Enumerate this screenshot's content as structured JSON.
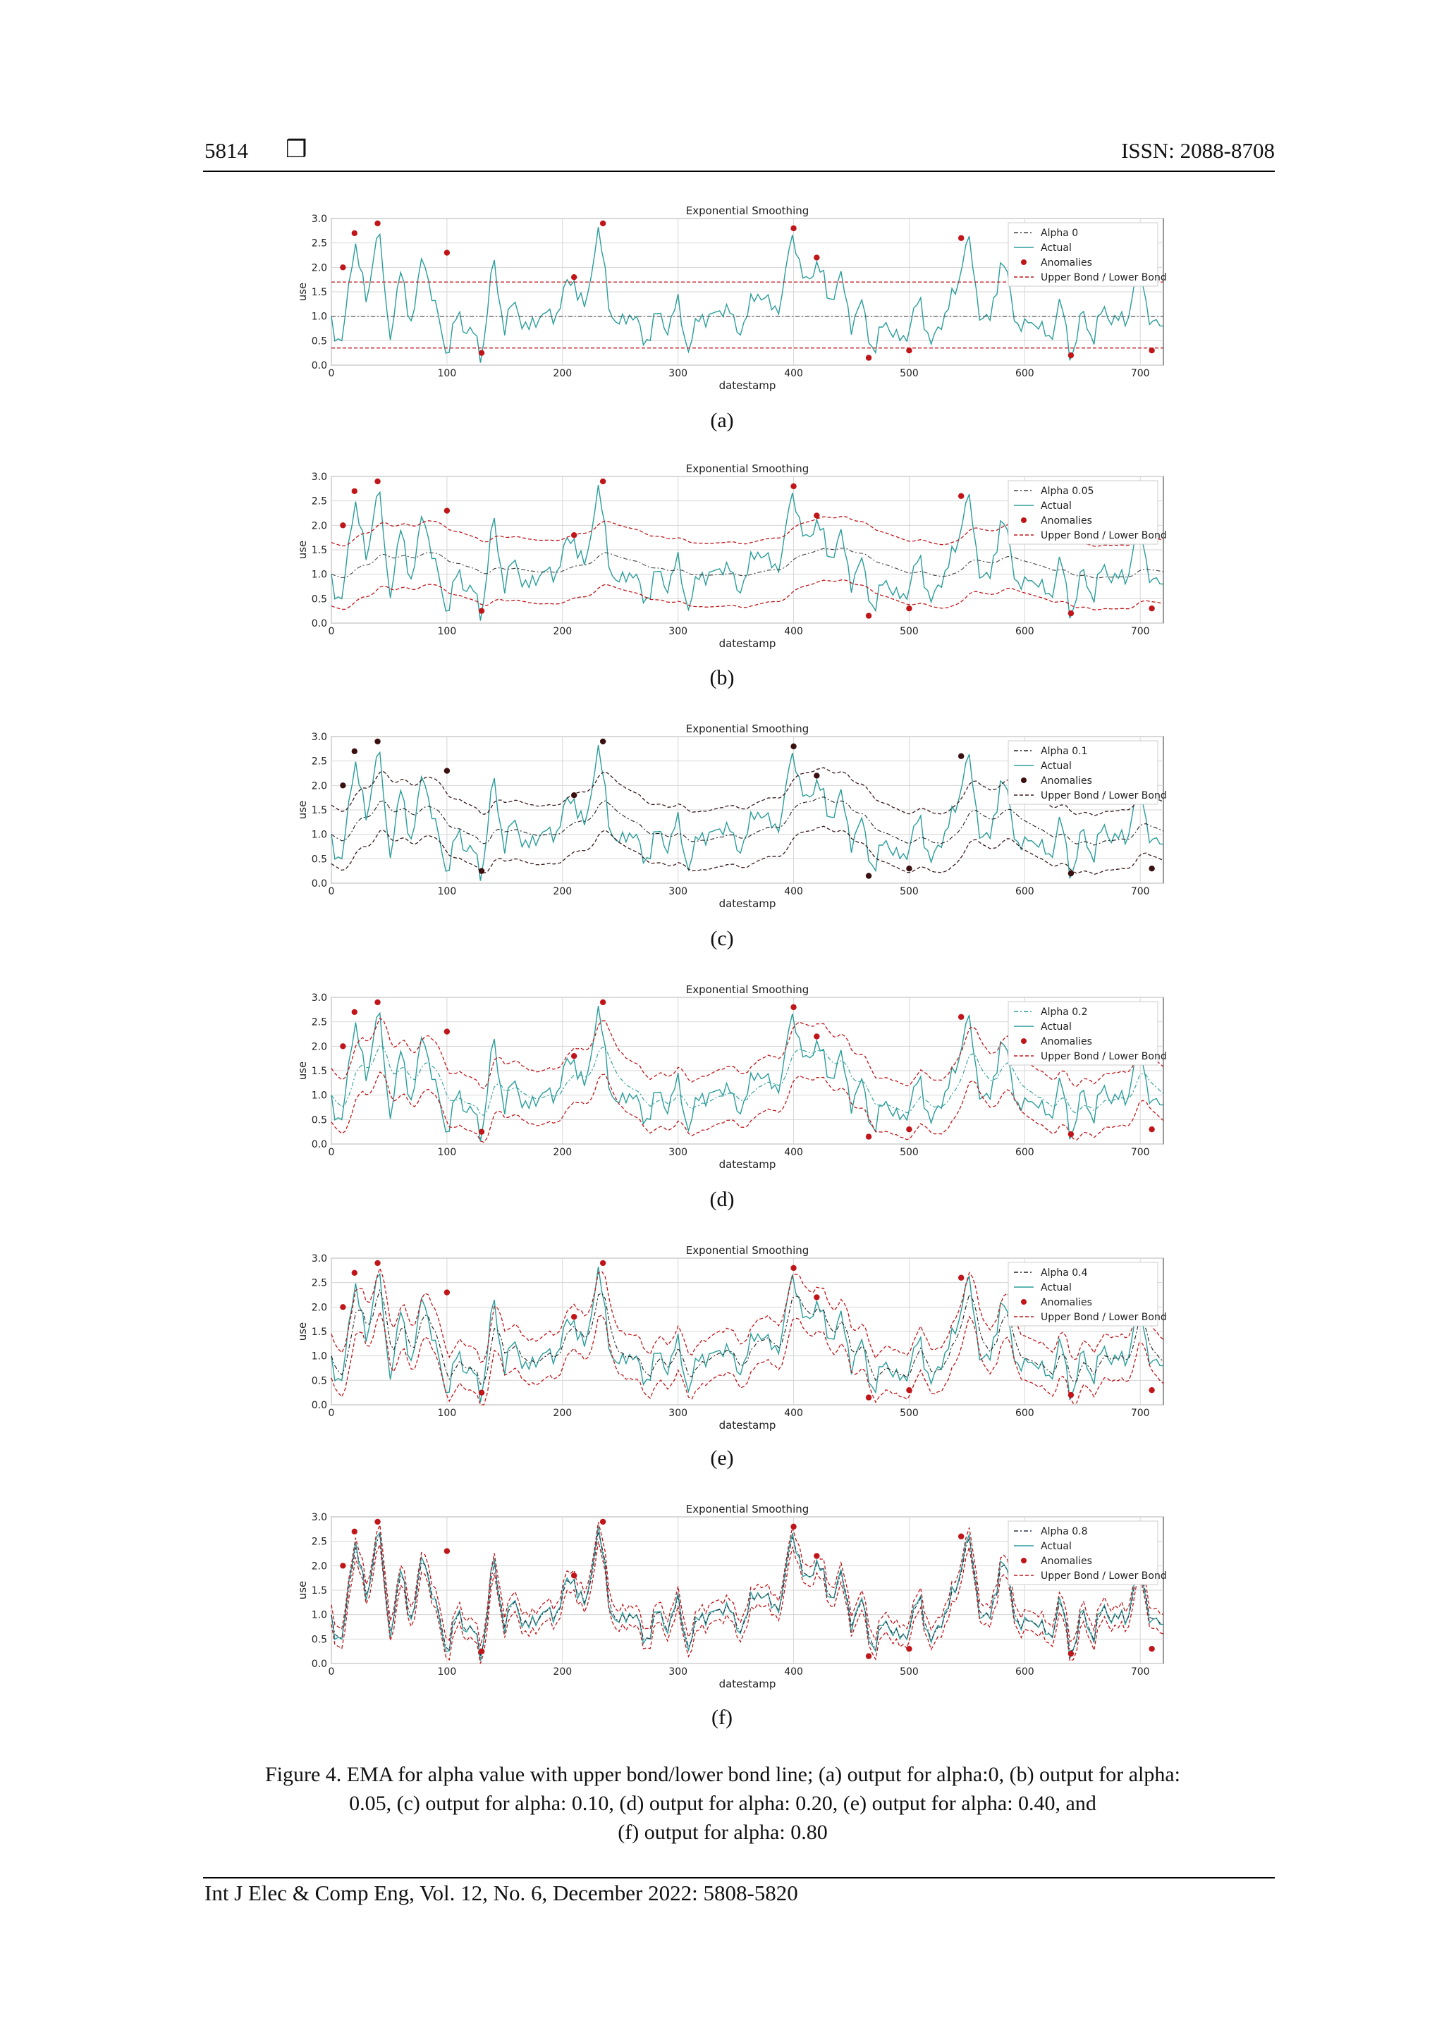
{
  "header": {
    "page_number": "5814",
    "box_glyph": "❒",
    "issn": "ISSN: 2088-8708"
  },
  "footer": {
    "citation": "Int J Elec & Comp Eng, Vol. 12, No. 6, December 2022: 5808-5820"
  },
  "caption": {
    "line1": "Figure 4. EMA for alpha value with upper bond/lower bond line; (a) output for alpha:0, (b) output for alpha:",
    "line2": "0.05, (c) output for alpha: 0.10, (d) output for alpha: 0.20, (e) output for alpha: 0.40, and",
    "line3": "(f) output for alpha: 0.80"
  },
  "colors": {
    "actual": "#2a9d9a",
    "anomaly": "#c0161a",
    "band_red": "#c0161a",
    "band_dark": "#3a1a1a",
    "alpha_line": "#444444",
    "grid": "#d6d6d6"
  },
  "chart_data": [
    {
      "type": "line",
      "panel_label": "(a)",
      "title": "Exponential Smoothing",
      "xlabel": "datestamp",
      "ylabel": "use",
      "xlim": [
        0,
        720
      ],
      "ylim": [
        0,
        3.0
      ],
      "xticks": [
        "0",
        "100",
        "200",
        "300",
        "400",
        "500",
        "600",
        "700"
      ],
      "yticks": [
        "0.0",
        "0.5",
        "1.0",
        "1.5",
        "2.0",
        "2.5",
        "3.0"
      ],
      "grid": true,
      "legend_placement": "top-right",
      "legend": [
        "Alpha 0",
        "Actual",
        "Anomalies",
        "Upper Bond / Lower Bond"
      ],
      "alpha": 0,
      "band_style": "red-dashed-flat",
      "alpha_line_color": "#444444",
      "series": [
        {
          "name": "Actual",
          "x": [
            0,
            10,
            20,
            30,
            40,
            50,
            60,
            70,
            80,
            90,
            100,
            110,
            120,
            130,
            140,
            150,
            160,
            170,
            180,
            190,
            200,
            210,
            220,
            230,
            240,
            250,
            260,
            270,
            280,
            290,
            300,
            310,
            320,
            330,
            340,
            350,
            360,
            370,
            380,
            390,
            400,
            410,
            420,
            430,
            440,
            450,
            460,
            470,
            480,
            490,
            500,
            510,
            520,
            530,
            540,
            550,
            560,
            570,
            580,
            590,
            600,
            610,
            620,
            630,
            640,
            650,
            660,
            670,
            680,
            690,
            700,
            710,
            720
          ],
          "y": [
            0.9,
            0.4,
            2.7,
            1.2,
            2.9,
            0.6,
            1.8,
            0.9,
            2.3,
            1.1,
            0.3,
            1.0,
            0.7,
            0.2,
            2.1,
            0.8,
            1.3,
            0.6,
            1.1,
            0.9,
            1.4,
            1.8,
            1.0,
            2.9,
            1.3,
            0.7,
            1.2,
            0.4,
            1.0,
            0.8,
            1.2,
            0.3,
            1.1,
            0.9,
            1.3,
            0.7,
            1.0,
            1.6,
            1.1,
            1.4,
            2.8,
            1.5,
            2.2,
            1.3,
            1.8,
            0.9,
            1.2,
            0.2,
            1.0,
            0.4,
            0.8,
            1.3,
            0.3,
            1.1,
            1.4,
            2.7,
            1.2,
            0.8,
            2.3,
            1.1,
            0.7,
            1.0,
            0.4,
            1.3,
            0.2,
            1.0,
            0.6,
            1.2,
            0.8,
            1.1,
            2.1,
            0.7,
            0.9
          ]
        },
        {
          "name": "Upper Bond / Lower Bond",
          "upper_flat": 1.7,
          "lower_flat": 0.35
        }
      ],
      "anomalies": {
        "x": [
          10,
          20,
          40,
          100,
          130,
          210,
          235,
          400,
          420,
          465,
          500,
          545,
          640,
          710
        ],
        "y": [
          2.0,
          2.7,
          2.9,
          2.3,
          0.25,
          1.8,
          2.9,
          2.8,
          2.2,
          0.15,
          0.3,
          2.6,
          0.2,
          0.3
        ]
      }
    },
    {
      "type": "line",
      "panel_label": "(b)",
      "title": "Exponential Smoothing",
      "xlabel": "datestamp",
      "ylabel": "use",
      "xlim": [
        0,
        720
      ],
      "ylim": [
        0,
        3.0
      ],
      "xticks": [
        "0",
        "100",
        "200",
        "300",
        "400",
        "500",
        "600",
        "700"
      ],
      "yticks": [
        "0.0",
        "0.5",
        "1.0",
        "1.5",
        "2.0",
        "2.5",
        "3.0"
      ],
      "grid": true,
      "legend_placement": "top-right",
      "legend": [
        "Alpha 0.05",
        "Actual",
        "Anomalies",
        "Upper Bond / Lower Bond"
      ],
      "alpha": 0.05,
      "band_style": "red-dashed",
      "band_width": 0.65,
      "alpha_line_color": "#444444",
      "series": [
        {
          "name": "Actual",
          "ref": 0
        }
      ],
      "anomalies": {
        "x": [
          10,
          20,
          40,
          100,
          130,
          210,
          235,
          400,
          420,
          465,
          500,
          545,
          640,
          710
        ],
        "y": [
          2.0,
          2.7,
          2.9,
          2.3,
          0.25,
          1.8,
          2.9,
          2.8,
          2.2,
          0.15,
          0.3,
          2.6,
          0.2,
          0.3
        ]
      }
    },
    {
      "type": "line",
      "panel_label": "(c)",
      "title": "Exponential Smoothing",
      "xlabel": "datestamp",
      "ylabel": "use",
      "xlim": [
        0,
        720
      ],
      "ylim": [
        0,
        3.0
      ],
      "xticks": [
        "0",
        "100",
        "200",
        "300",
        "400",
        "500",
        "600",
        "700"
      ],
      "yticks": [
        "0.0",
        "0.5",
        "1.0",
        "1.5",
        "2.0",
        "2.5",
        "3.0"
      ],
      "grid": true,
      "legend_placement": "top-right",
      "legend": [
        "Alpha 0.1",
        "Actual",
        "Anomalies",
        "Upper Bond / Lower Bond"
      ],
      "alpha": 0.1,
      "band_style": "dark-dashed",
      "band_width": 0.6,
      "alpha_line_color": "#222222",
      "series": [
        {
          "name": "Actual",
          "ref": 0
        }
      ],
      "anomalies": {
        "x": [
          10,
          20,
          40,
          100,
          130,
          210,
          235,
          400,
          420,
          465,
          500,
          545,
          640,
          710
        ],
        "y": [
          2.0,
          2.7,
          2.9,
          2.3,
          0.25,
          1.8,
          2.9,
          2.8,
          2.2,
          0.15,
          0.3,
          2.6,
          0.2,
          0.3
        ]
      }
    },
    {
      "type": "line",
      "panel_label": "(d)",
      "title": "Exponential Smoothing",
      "xlabel": "datestamp",
      "ylabel": "use",
      "xlim": [
        0,
        720
      ],
      "ylim": [
        0,
        3.0
      ],
      "xticks": [
        "0",
        "100",
        "200",
        "300",
        "400",
        "500",
        "600",
        "700"
      ],
      "yticks": [
        "0.0",
        "0.5",
        "1.0",
        "1.5",
        "2.0",
        "2.5",
        "3.0"
      ],
      "grid": true,
      "legend_placement": "top-right",
      "legend": [
        "Alpha 0.2",
        "Actual",
        "Anomalies",
        "Upper Bond / Lower Bond"
      ],
      "alpha": 0.2,
      "band_style": "red-dashed",
      "band_width": 0.55,
      "alpha_line_color": "#2a9d9a",
      "series": [
        {
          "name": "Actual",
          "ref": 0
        }
      ],
      "anomalies": {
        "x": [
          10,
          20,
          40,
          100,
          130,
          210,
          235,
          400,
          420,
          465,
          500,
          545,
          640,
          710
        ],
        "y": [
          2.0,
          2.7,
          2.9,
          2.3,
          0.25,
          1.8,
          2.9,
          2.8,
          2.2,
          0.15,
          0.3,
          2.6,
          0.2,
          0.3
        ]
      }
    },
    {
      "type": "line",
      "panel_label": "(e)",
      "title": "Exponential Smoothing",
      "xlabel": "datestamp",
      "ylabel": "use",
      "xlim": [
        0,
        720
      ],
      "ylim": [
        0,
        3.0
      ],
      "xticks": [
        "0",
        "100",
        "200",
        "300",
        "400",
        "500",
        "600",
        "700"
      ],
      "yticks": [
        "0.0",
        "0.5",
        "1.0",
        "1.5",
        "2.0",
        "2.5",
        "3.0"
      ],
      "grid": true,
      "legend_placement": "top-right",
      "legend": [
        "Alpha 0.4",
        "Actual",
        "Anomalies",
        "Upper Bond / Lower Bond"
      ],
      "alpha": 0.4,
      "band_style": "red-dashed",
      "band_width": 0.45,
      "alpha_line_color": "#222222",
      "series": [
        {
          "name": "Actual",
          "ref": 0
        }
      ],
      "anomalies": {
        "x": [
          10,
          20,
          40,
          100,
          130,
          210,
          235,
          400,
          420,
          465,
          500,
          545,
          640,
          710
        ],
        "y": [
          2.0,
          2.7,
          2.9,
          2.3,
          0.25,
          1.8,
          2.9,
          2.8,
          2.2,
          0.15,
          0.3,
          2.6,
          0.2,
          0.3
        ]
      }
    },
    {
      "type": "line",
      "panel_label": "(f)",
      "title": "Exponential Smoothing",
      "xlabel": "datestamp",
      "ylabel": "use",
      "xlim": [
        0,
        720
      ],
      "ylim": [
        0,
        3.0
      ],
      "xticks": [
        "0",
        "100",
        "200",
        "300",
        "400",
        "500",
        "600",
        "700"
      ],
      "yticks": [
        "0.0",
        "0.5",
        "1.0",
        "1.5",
        "2.0",
        "2.5",
        "3.0"
      ],
      "grid": true,
      "legend_placement": "top-right",
      "legend": [
        "Alpha 0.8",
        "Actual",
        "Anomalies",
        "Upper Bond / Lower Bond"
      ],
      "alpha": 0.8,
      "band_style": "red-dashed",
      "band_width": 0.2,
      "alpha_line_color": "#223344",
      "series": [
        {
          "name": "Actual",
          "ref": 0
        }
      ],
      "anomalies": {
        "x": [
          10,
          20,
          40,
          100,
          130,
          210,
          235,
          400,
          420,
          465,
          500,
          545,
          640,
          710
        ],
        "y": [
          2.0,
          2.7,
          2.9,
          2.3,
          0.25,
          1.8,
          2.9,
          2.8,
          2.2,
          0.15,
          0.3,
          2.6,
          0.2,
          0.3
        ]
      }
    }
  ]
}
